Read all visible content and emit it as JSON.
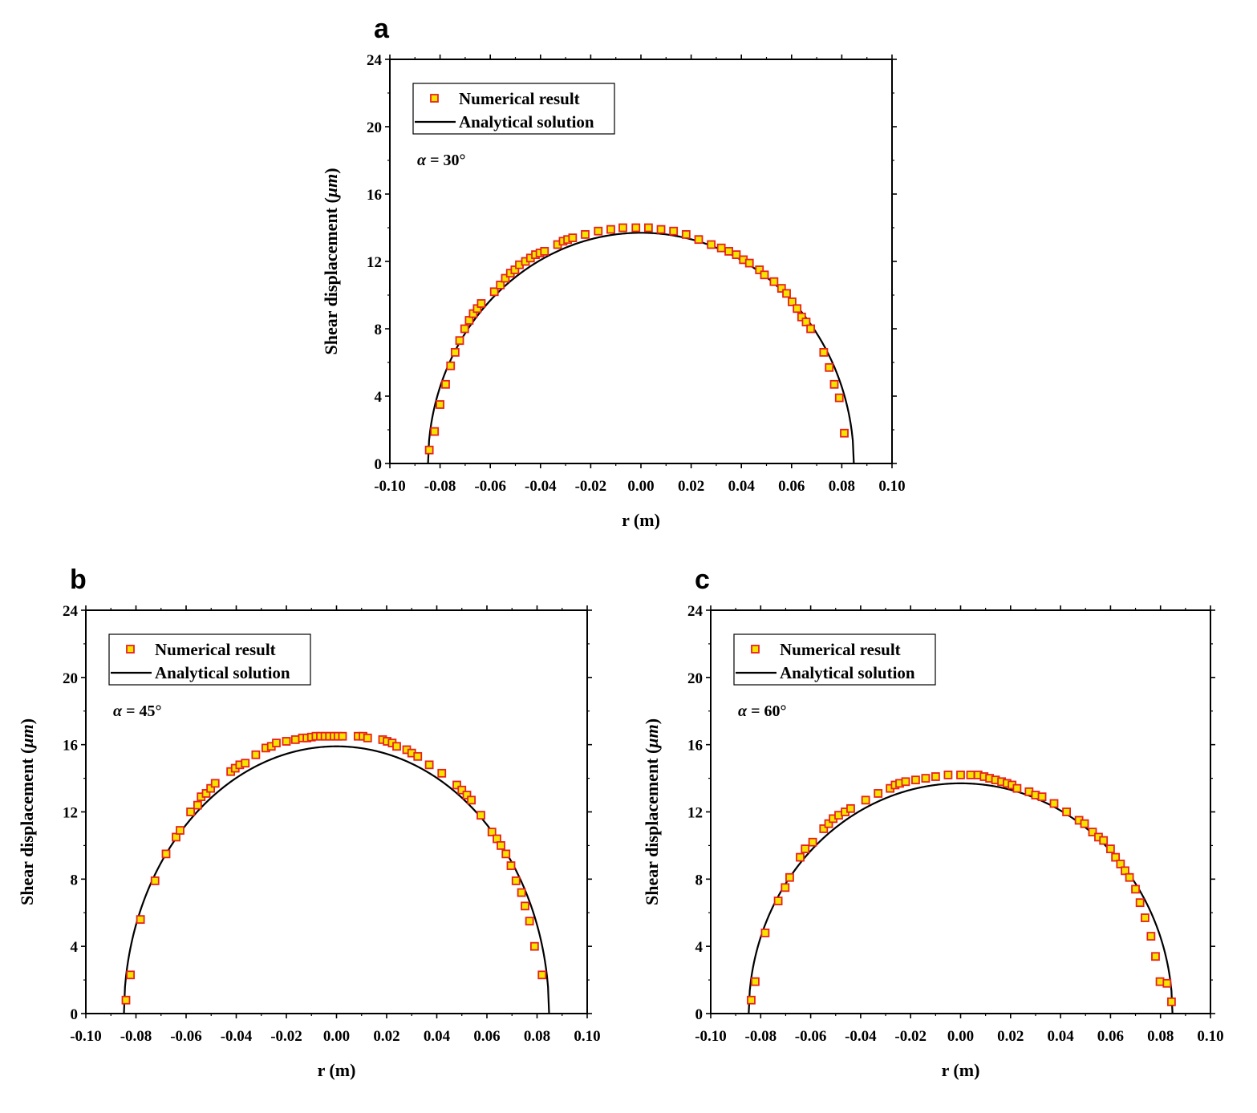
{
  "chart_data": [
    {
      "type": "scatter",
      "panel": "a",
      "annotation_symbol": "α",
      "annotation_text": " = 30°",
      "xlabel": "r (m)",
      "ylabel_prefix": "Shear displacement (",
      "ylabel_unit": "μm",
      "ylabel_suffix": ")",
      "xlim": [
        -0.1,
        0.1
      ],
      "ylim": [
        0,
        24
      ],
      "xticks": [
        "-0.10",
        "-0.08",
        "-0.06",
        "-0.04",
        "-0.02",
        "0.00",
        "0.02",
        "0.04",
        "0.06",
        "0.08",
        "0.10"
      ],
      "yticks": [
        "0",
        "4",
        "8",
        "12",
        "16",
        "20",
        "24"
      ],
      "grid": false,
      "legend_position": "top-left",
      "series": [
        {
          "name": "Numerical result",
          "kind": "markers",
          "x": [
            -0.0843,
            -0.0822,
            -0.08,
            -0.0778,
            -0.0758,
            -0.074,
            -0.0722,
            -0.0702,
            -0.0684,
            -0.0668,
            -0.0652,
            -0.0636,
            -0.0584,
            -0.056,
            -0.054,
            -0.052,
            -0.0502,
            -0.0484,
            -0.046,
            -0.044,
            -0.042,
            -0.0402,
            -0.0384,
            -0.0332,
            -0.031,
            -0.0292,
            -0.0272,
            -0.0222,
            -0.017,
            -0.012,
            -0.0072,
            -0.002,
            0.003,
            0.008,
            0.013,
            0.018,
            0.023,
            0.028,
            0.032,
            0.035,
            0.038,
            0.0408,
            0.0432,
            0.0472,
            0.0492,
            0.053,
            0.056,
            0.058,
            0.0602,
            0.0622,
            0.064,
            0.0658,
            0.0676,
            0.0728,
            0.075,
            0.077,
            0.079,
            0.081
          ],
          "y": [
            0.8,
            1.9,
            3.5,
            4.7,
            5.8,
            6.6,
            7.3,
            8.0,
            8.5,
            8.9,
            9.2,
            9.5,
            10.2,
            10.6,
            11.0,
            11.3,
            11.5,
            11.8,
            12.0,
            12.2,
            12.4,
            12.5,
            12.6,
            13.0,
            13.2,
            13.3,
            13.4,
            13.6,
            13.8,
            13.9,
            14.0,
            14.0,
            14.0,
            13.9,
            13.8,
            13.6,
            13.3,
            13.0,
            12.8,
            12.6,
            12.4,
            12.1,
            11.9,
            11.5,
            11.2,
            10.8,
            10.4,
            10.1,
            9.6,
            9.2,
            8.7,
            8.4,
            8.0,
            6.6,
            5.7,
            4.7,
            3.9,
            1.8
          ]
        },
        {
          "name": "Analytical solution",
          "kind": "line",
          "peak": 13.7,
          "half_width": 0.0848
        }
      ]
    },
    {
      "type": "scatter",
      "panel": "b",
      "annotation_symbol": "α",
      "annotation_text": " = 45°",
      "xlabel": "r (m)",
      "ylabel_prefix": "Shear displacement (",
      "ylabel_unit": "μm",
      "ylabel_suffix": ")",
      "xlim": [
        -0.1,
        0.1
      ],
      "ylim": [
        0,
        24
      ],
      "xticks": [
        "-0.10",
        "-0.08",
        "-0.06",
        "-0.04",
        "-0.02",
        "0.00",
        "0.02",
        "0.04",
        "0.06",
        "0.08",
        "0.10"
      ],
      "yticks": [
        "0",
        "4",
        "8",
        "12",
        "16",
        "20",
        "24"
      ],
      "grid": false,
      "legend_position": "top-left",
      "series": [
        {
          "name": "Numerical result",
          "kind": "markers",
          "x": [
            -0.084,
            -0.0822,
            -0.0782,
            -0.0724,
            -0.068,
            -0.064,
            -0.0624,
            -0.0582,
            -0.0554,
            -0.054,
            -0.052,
            -0.0502,
            -0.0484,
            -0.0422,
            -0.0404,
            -0.0386,
            -0.0364,
            -0.0322,
            -0.0282,
            -0.026,
            -0.024,
            -0.02,
            -0.0164,
            -0.0136,
            -0.0118,
            -0.01,
            -0.0082,
            -0.0064,
            -0.0046,
            -0.0028,
            -0.001,
            0.0006,
            0.0024,
            0.0086,
            0.0106,
            0.0124,
            0.0184,
            0.0202,
            0.0222,
            0.024,
            0.028,
            0.03,
            0.0324,
            0.037,
            0.042,
            0.048,
            0.05,
            0.052,
            0.0538,
            0.0576,
            0.062,
            0.064,
            0.0656,
            0.0676,
            0.0696,
            0.0716,
            0.0738,
            0.0752,
            0.077,
            0.079,
            0.082
          ],
          "y": [
            0.8,
            2.3,
            5.6,
            7.9,
            9.5,
            10.5,
            10.9,
            12.0,
            12.4,
            12.9,
            13.1,
            13.4,
            13.7,
            14.4,
            14.6,
            14.8,
            14.9,
            15.4,
            15.8,
            15.9,
            16.1,
            16.2,
            16.3,
            16.4,
            16.4,
            16.45,
            16.5,
            16.5,
            16.5,
            16.5,
            16.5,
            16.5,
            16.5,
            16.5,
            16.5,
            16.4,
            16.3,
            16.2,
            16.1,
            15.9,
            15.7,
            15.5,
            15.3,
            14.8,
            14.3,
            13.6,
            13.3,
            13.0,
            12.7,
            11.8,
            10.8,
            10.4,
            10.0,
            9.5,
            8.8,
            7.9,
            7.2,
            6.4,
            5.5,
            4.0,
            2.3
          ]
        },
        {
          "name": "Analytical solution",
          "kind": "line",
          "peak": 15.9,
          "half_width": 0.0848
        }
      ]
    },
    {
      "type": "scatter",
      "panel": "c",
      "annotation_symbol": "α",
      "annotation_text": " = 60°",
      "xlabel": "r (m)",
      "ylabel_prefix": "Shear displacement (",
      "ylabel_unit": "μm",
      "ylabel_suffix": ")",
      "xlim": [
        -0.1,
        0.1
      ],
      "ylim": [
        0,
        24
      ],
      "xticks": [
        "-0.10",
        "-0.08",
        "-0.06",
        "-0.04",
        "-0.02",
        "0.00",
        "0.02",
        "0.04",
        "0.06",
        "0.08",
        "0.10"
      ],
      "yticks": [
        "0",
        "4",
        "8",
        "12",
        "16",
        "20",
        "24"
      ],
      "grid": false,
      "legend_position": "top-left",
      "series": [
        {
          "name": "Numerical result",
          "kind": "markers",
          "x": [
            -0.0838,
            -0.0822,
            -0.0782,
            -0.073,
            -0.0702,
            -0.0684,
            -0.0642,
            -0.0622,
            -0.0592,
            -0.0548,
            -0.0528,
            -0.051,
            -0.0488,
            -0.0462,
            -0.044,
            -0.038,
            -0.033,
            -0.0282,
            -0.0262,
            -0.0244,
            -0.022,
            -0.018,
            -0.014,
            -0.01,
            -0.005,
            0.0,
            0.004,
            0.007,
            0.0094,
            0.0116,
            0.014,
            0.0164,
            0.0186,
            0.0206,
            0.0226,
            0.0274,
            0.03,
            0.0326,
            0.0374,
            0.0424,
            0.0474,
            0.0496,
            0.0528,
            0.0552,
            0.0572,
            0.06,
            0.062,
            0.064,
            0.0658,
            0.0676,
            0.07,
            0.0718,
            0.0738,
            0.0762,
            0.078,
            0.0798,
            0.0826,
            0.0844
          ],
          "y": [
            0.8,
            1.9,
            4.8,
            6.7,
            7.5,
            8.1,
            9.3,
            9.8,
            10.2,
            11.0,
            11.3,
            11.6,
            11.8,
            12.0,
            12.2,
            12.7,
            13.1,
            13.4,
            13.6,
            13.7,
            13.8,
            13.9,
            14.0,
            14.1,
            14.2,
            14.2,
            14.2,
            14.2,
            14.1,
            14.0,
            13.9,
            13.8,
            13.7,
            13.6,
            13.4,
            13.2,
            13.0,
            12.9,
            12.5,
            12.0,
            11.5,
            11.3,
            10.8,
            10.5,
            10.3,
            9.8,
            9.3,
            8.9,
            8.5,
            8.1,
            7.4,
            6.6,
            5.7,
            4.6,
            3.4,
            1.9,
            1.8,
            0.7
          ]
        },
        {
          "name": "Analytical solution",
          "kind": "line",
          "peak": 13.7,
          "half_width": 0.0848
        }
      ]
    }
  ],
  "colors": {
    "marker_fill": "#f5e400",
    "marker_stroke": "#e8201c",
    "line": "#000000",
    "axis": "#000000"
  }
}
